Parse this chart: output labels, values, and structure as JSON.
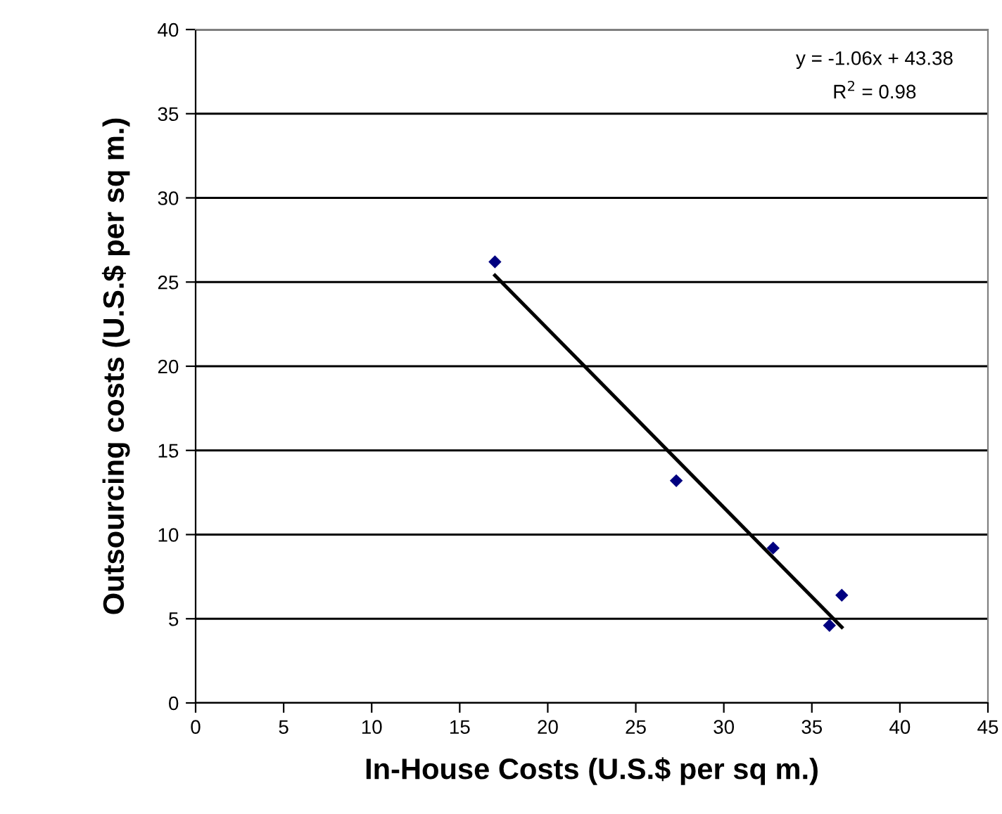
{
  "chart_data": {
    "type": "scatter",
    "xlabel": "In-House Costs (U.S.$ per sq m.)",
    "ylabel": "Outsourcing costs (U.S.$ per sq m.)",
    "series": [
      {
        "color": "#000080",
        "marker": "diamond",
        "x": [
          17.0,
          27.3,
          32.8,
          36.7,
          36.0
        ],
        "values": [
          26.2,
          13.2,
          9.2,
          6.4,
          4.6
        ]
      },
      {
        "type": "line",
        "color": "#000000",
        "marker": "none",
        "line_style": "solid",
        "x": [
          17.0,
          36.7
        ],
        "values": [
          25.4,
          4.5
        ]
      }
    ],
    "xlim": [
      0,
      45
    ],
    "xticks": [
      0,
      5,
      10,
      15,
      20,
      25,
      30,
      35,
      40,
      45
    ],
    "ylim": [
      0,
      40
    ],
    "yticks": [
      0,
      5,
      10,
      15,
      20,
      25,
      30,
      35,
      40
    ],
    "grid": "y",
    "legend": false,
    "annotations": [
      "y = -1.06x + 43.38",
      "R$^{2}$ = 0.98"
    ]
  }
}
